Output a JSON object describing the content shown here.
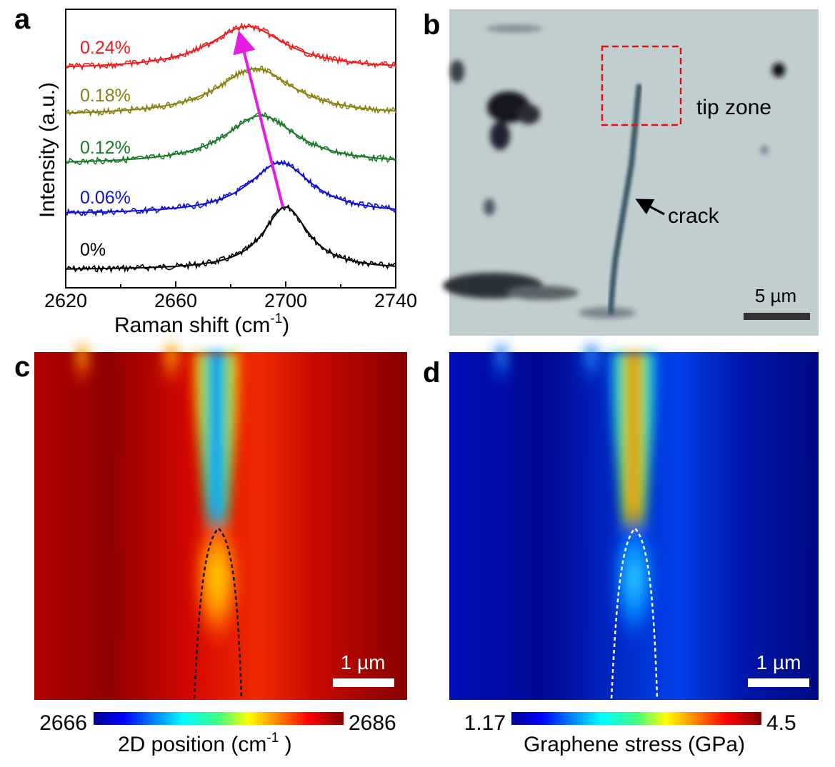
{
  "panel_labels": {
    "a": "a",
    "b": "b",
    "c": "c",
    "d": "d"
  },
  "panel_a": {
    "ylabel": "Intensity (a.u.)",
    "xlabel_main": "Raman shift (cm",
    "xlabel_sup": "-1",
    "xlabel_end": ")",
    "xticks": [
      "2620",
      "2660",
      "2700",
      "2740"
    ],
    "xlim": [
      2620,
      2740
    ],
    "arrow_color": "#e41ce4"
  },
  "panel_b": {
    "tip_zone_label": "tip zone",
    "crack_label": "crack",
    "scale_label": "5 µm"
  },
  "panel_c": {
    "scale_label": "1 µm",
    "cbar_min": "2666",
    "cbar_max": "2686",
    "cbar_label": "2D position (cm",
    "cbar_label_sup": "-1",
    "cbar_label_end": " )"
  },
  "panel_d": {
    "scale_label": "1 µm",
    "cbar_min": "1.17",
    "cbar_max": "4.5",
    "cbar_label": "Graphene stress (GPa)"
  },
  "chart_data": {
    "type": "line",
    "x_unit": "cm^-1",
    "xlim": [
      2620,
      2740
    ],
    "grid": false,
    "series": [
      {
        "name": "0%",
        "color": "#000000",
        "peak_x": 2700,
        "width": 10
      },
      {
        "name": "0.06%",
        "color": "#1010d0",
        "peak_x": 2698,
        "width": 14
      },
      {
        "name": "0.12%",
        "color": "#1a7a2a",
        "peak_x": 2691,
        "width": 16
      },
      {
        "name": "0.18%",
        "color": "#8a8010",
        "peak_x": 2689,
        "width": 17
      },
      {
        "name": "0.24%",
        "color": "#ee1c1c",
        "peak_x": 2686,
        "width": 17
      }
    ]
  }
}
